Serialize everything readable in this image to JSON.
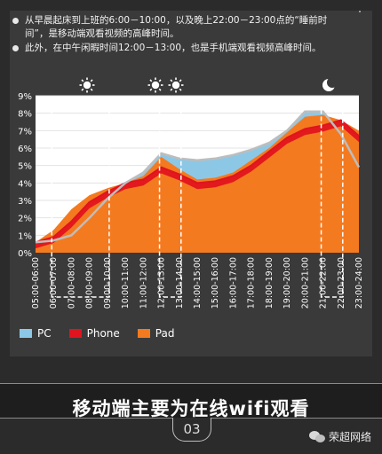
{
  "notes": [
    "从早晨起床到上班的6:00－10:00，以及晚上22:00－23:00点的“睡前时间”，是移动端观看视频的高峰时间。",
    "此外，在中午闲暇时间12:00－13:00，也是手机端观看视频高峰时间。"
  ],
  "icons": [
    "sun-icon",
    "sun-icon",
    "sun-icon",
    "moon-icon"
  ],
  "banner_title": "移动端主要为在线wifi观看",
  "page_number": "03",
  "watermark": "荣超网络",
  "colors": {
    "pc": "#8cc8e6",
    "phone": "#e0141e",
    "pad": "#f47a20",
    "pc_line": "#bdbdbd"
  },
  "chart_data": {
    "type": "area",
    "x": [
      "05:00-06:00",
      "06:00-07:00",
      "07:00-08:00",
      "08:00-09:00",
      "09:00-10:00",
      "10:00-11:00",
      "11:00-12:00",
      "12:00-13:00",
      "13:00-14:00",
      "14:00-15:00",
      "15:00-16:00",
      "16:00-17:00",
      "17:00-18:00",
      "18:00-19:00",
      "19:00-20:00",
      "20:00-21:00",
      "21:00-22:00",
      "22:00-23:00",
      "23:00-24:00"
    ],
    "series": [
      {
        "name": "PC",
        "values": [
          0.6,
          0.7,
          1.0,
          2.0,
          3.1,
          4.0,
          4.6,
          5.7,
          5.4,
          5.3,
          5.4,
          5.6,
          5.9,
          6.3,
          7.0,
          8.1,
          8.1,
          6.8,
          4.9
        ]
      },
      {
        "name": "Phone",
        "values": [
          0.6,
          0.9,
          1.8,
          2.9,
          3.5,
          4.0,
          4.2,
          4.9,
          4.5,
          4.0,
          4.1,
          4.4,
          5.0,
          5.8,
          6.6,
          7.1,
          7.3,
          7.6,
          6.7
        ]
      },
      {
        "name": "Pad",
        "values": [
          0.6,
          1.3,
          2.5,
          3.3,
          3.7,
          4.0,
          4.4,
          5.5,
          4.8,
          4.2,
          4.3,
          4.6,
          5.3,
          6.0,
          6.9,
          7.8,
          7.9,
          7.6,
          7.0
        ]
      }
    ],
    "yticks": [
      "0%",
      "1%",
      "2%",
      "3%",
      "4%",
      "5%",
      "6%",
      "7%",
      "8%",
      "9%"
    ],
    "ylim": [
      0,
      9
    ],
    "y_unit": "%",
    "highlight_ranges": [
      [
        1,
        4
      ],
      [
        7,
        8
      ],
      [
        16,
        17
      ]
    ],
    "legend": [
      "PC",
      "Phone",
      "Pad"
    ],
    "legend_position": "bottom-left"
  }
}
